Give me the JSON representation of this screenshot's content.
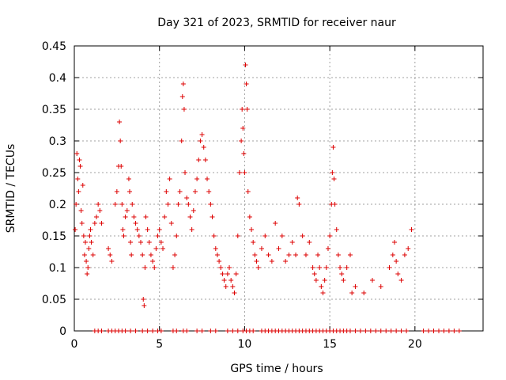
{
  "chart_data": {
    "type": "scatter",
    "title": "Day 321 of 2023, SRMTID for receiver naur",
    "xlabel": "GPS time / hours",
    "ylabel": "SRMTID / TECUs",
    "xlim": [
      0,
      24
    ],
    "ylim": [
      0,
      0.45
    ],
    "xticks": [
      0,
      5,
      10,
      15,
      20
    ],
    "yticks": [
      0,
      0.05,
      0.1,
      0.15,
      0.2,
      0.25,
      0.3,
      0.35,
      0.4,
      0.45
    ],
    "ytick_labels": [
      "0",
      "0.05",
      "0.1",
      "0.15",
      "0.2",
      "0.25",
      "0.3",
      "0.35",
      "0.4",
      "0.45"
    ],
    "grid": true,
    "marker": "+",
    "marker_color": "#dd0000",
    "series": [
      {
        "name": "SRMTID",
        "points": [
          [
            0.05,
            0.16
          ],
          [
            0.1,
            0.2
          ],
          [
            0.15,
            0.28
          ],
          [
            0.2,
            0.24
          ],
          [
            0.25,
            0.22
          ],
          [
            0.3,
            0.27
          ],
          [
            0.35,
            0.26
          ],
          [
            0.4,
            0.19
          ],
          [
            0.45,
            0.17
          ],
          [
            0.5,
            0.23
          ],
          [
            0.55,
            0.15
          ],
          [
            0.6,
            0.12
          ],
          [
            0.65,
            0.14
          ],
          [
            0.7,
            0.11
          ],
          [
            0.75,
            0.09
          ],
          [
            0.8,
            0.1
          ],
          [
            0.85,
            0.13
          ],
          [
            0.9,
            0.15
          ],
          [
            0.95,
            0.16
          ],
          [
            1.0,
            0.14
          ],
          [
            1.1,
            0.12
          ],
          [
            1.2,
            0.17
          ],
          [
            1.3,
            0.18
          ],
          [
            1.4,
            0.2
          ],
          [
            1.5,
            0.19
          ],
          [
            1.6,
            0.17
          ],
          [
            2.0,
            0.13
          ],
          [
            2.1,
            0.12
          ],
          [
            2.2,
            0.11
          ],
          [
            2.4,
            0.2
          ],
          [
            2.5,
            0.22
          ],
          [
            2.6,
            0.26
          ],
          [
            2.65,
            0.33
          ],
          [
            2.7,
            0.3
          ],
          [
            2.75,
            0.26
          ],
          [
            2.8,
            0.2
          ],
          [
            2.85,
            0.16
          ],
          [
            2.9,
            0.15
          ],
          [
            3.0,
            0.18
          ],
          [
            3.1,
            0.19
          ],
          [
            3.2,
            0.24
          ],
          [
            3.25,
            0.22
          ],
          [
            3.3,
            0.14
          ],
          [
            3.35,
            0.12
          ],
          [
            3.4,
            0.2
          ],
          [
            3.5,
            0.18
          ],
          [
            3.6,
            0.17
          ],
          [
            3.7,
            0.16
          ],
          [
            3.8,
            0.15
          ],
          [
            3.9,
            0.14
          ],
          [
            4.0,
            0.12
          ],
          [
            4.05,
            0.05
          ],
          [
            4.1,
            0.04
          ],
          [
            4.15,
            0.1
          ],
          [
            4.2,
            0.18
          ],
          [
            4.3,
            0.16
          ],
          [
            4.4,
            0.14
          ],
          [
            4.5,
            0.12
          ],
          [
            4.6,
            0.11
          ],
          [
            4.7,
            0.1
          ],
          [
            4.8,
            0.13
          ],
          [
            4.9,
            0.15
          ],
          [
            5.0,
            0.16
          ],
          [
            5.1,
            0.14
          ],
          [
            5.2,
            0.13
          ],
          [
            5.3,
            0.18
          ],
          [
            5.4,
            0.22
          ],
          [
            5.5,
            0.2
          ],
          [
            5.6,
            0.24
          ],
          [
            5.7,
            0.17
          ],
          [
            5.8,
            0.1
          ],
          [
            5.9,
            0.12
          ],
          [
            6.0,
            0.15
          ],
          [
            6.1,
            0.2
          ],
          [
            6.2,
            0.22
          ],
          [
            6.3,
            0.3
          ],
          [
            6.35,
            0.37
          ],
          [
            6.4,
            0.39
          ],
          [
            6.45,
            0.35
          ],
          [
            6.5,
            0.25
          ],
          [
            6.6,
            0.21
          ],
          [
            6.7,
            0.2
          ],
          [
            6.8,
            0.18
          ],
          [
            6.9,
            0.16
          ],
          [
            7.0,
            0.19
          ],
          [
            7.1,
            0.22
          ],
          [
            7.2,
            0.24
          ],
          [
            7.3,
            0.27
          ],
          [
            7.4,
            0.3
          ],
          [
            7.5,
            0.31
          ],
          [
            7.6,
            0.29
          ],
          [
            7.7,
            0.27
          ],
          [
            7.8,
            0.24
          ],
          [
            7.9,
            0.22
          ],
          [
            8.0,
            0.2
          ],
          [
            8.1,
            0.18
          ],
          [
            8.2,
            0.15
          ],
          [
            8.3,
            0.13
          ],
          [
            8.4,
            0.12
          ],
          [
            8.5,
            0.11
          ],
          [
            8.6,
            0.1
          ],
          [
            8.7,
            0.09
          ],
          [
            8.8,
            0.08
          ],
          [
            8.9,
            0.07
          ],
          [
            9.0,
            0.09
          ],
          [
            9.1,
            0.1
          ],
          [
            9.2,
            0.08
          ],
          [
            9.3,
            0.07
          ],
          [
            9.4,
            0.06
          ],
          [
            9.5,
            0.09
          ],
          [
            9.6,
            0.15
          ],
          [
            9.7,
            0.25
          ],
          [
            9.8,
            0.3
          ],
          [
            9.85,
            0.35
          ],
          [
            9.9,
            0.32
          ],
          [
            9.95,
            0.28
          ],
          [
            10.0,
            0.25
          ],
          [
            10.05,
            0.42
          ],
          [
            10.1,
            0.39
          ],
          [
            10.15,
            0.35
          ],
          [
            10.2,
            0.22
          ],
          [
            10.3,
            0.18
          ],
          [
            10.4,
            0.16
          ],
          [
            10.5,
            0.14
          ],
          [
            10.6,
            0.12
          ],
          [
            10.7,
            0.11
          ],
          [
            10.8,
            0.1
          ],
          [
            11.0,
            0.13
          ],
          [
            11.2,
            0.15
          ],
          [
            11.4,
            0.12
          ],
          [
            11.6,
            0.11
          ],
          [
            11.8,
            0.17
          ],
          [
            12.0,
            0.13
          ],
          [
            12.2,
            0.15
          ],
          [
            12.4,
            0.11
          ],
          [
            12.6,
            0.12
          ],
          [
            12.8,
            0.14
          ],
          [
            13.0,
            0.12
          ],
          [
            13.1,
            0.21
          ],
          [
            13.2,
            0.2
          ],
          [
            13.4,
            0.15
          ],
          [
            13.6,
            0.12
          ],
          [
            13.8,
            0.14
          ],
          [
            14.0,
            0.1
          ],
          [
            14.1,
            0.09
          ],
          [
            14.2,
            0.08
          ],
          [
            14.3,
            0.12
          ],
          [
            14.4,
            0.1
          ],
          [
            14.5,
            0.07
          ],
          [
            14.6,
            0.06
          ],
          [
            14.7,
            0.08
          ],
          [
            14.8,
            0.1
          ],
          [
            14.9,
            0.13
          ],
          [
            15.0,
            0.15
          ],
          [
            15.1,
            0.2
          ],
          [
            15.15,
            0.25
          ],
          [
            15.2,
            0.29
          ],
          [
            15.25,
            0.24
          ],
          [
            15.3,
            0.2
          ],
          [
            15.4,
            0.16
          ],
          [
            15.5,
            0.12
          ],
          [
            15.6,
            0.1
          ],
          [
            15.7,
            0.09
          ],
          [
            15.8,
            0.08
          ],
          [
            16.0,
            0.1
          ],
          [
            16.2,
            0.12
          ],
          [
            16.3,
            0.06
          ],
          [
            16.5,
            0.07
          ],
          [
            17.0,
            0.06
          ],
          [
            17.5,
            0.08
          ],
          [
            18.0,
            0.07
          ],
          [
            18.5,
            0.1
          ],
          [
            18.7,
            0.12
          ],
          [
            18.8,
            0.14
          ],
          [
            18.9,
            0.11
          ],
          [
            19.0,
            0.09
          ],
          [
            19.2,
            0.08
          ],
          [
            19.4,
            0.12
          ],
          [
            19.6,
            0.13
          ],
          [
            19.8,
            0.16
          ]
        ],
        "zero_points": [
          1.2,
          1.4,
          1.6,
          2.0,
          2.2,
          2.4,
          2.6,
          2.8,
          3.0,
          3.3,
          3.6,
          4.0,
          4.3,
          4.6,
          4.9,
          5.1,
          5.8,
          6.0,
          6.4,
          6.6,
          7.2,
          7.5,
          8.0,
          8.3,
          9.0,
          9.3,
          9.6,
          9.9,
          10.1,
          10.3,
          10.5,
          11.0,
          11.2,
          11.4,
          11.6,
          11.8,
          12.0,
          12.2,
          12.4,
          12.6,
          12.8,
          13.0,
          13.2,
          13.4,
          13.6,
          13.8,
          14.0,
          14.2,
          14.4,
          14.6,
          14.8,
          15.0,
          15.2,
          15.4,
          15.6,
          15.8,
          16.0,
          16.2,
          16.5,
          16.8,
          17.1,
          17.4,
          17.7,
          18.0,
          18.3,
          18.6,
          18.9,
          19.2,
          19.5,
          20.5,
          20.8,
          21.1,
          21.4,
          21.7,
          22.0,
          22.3,
          22.6
        ]
      }
    ]
  }
}
